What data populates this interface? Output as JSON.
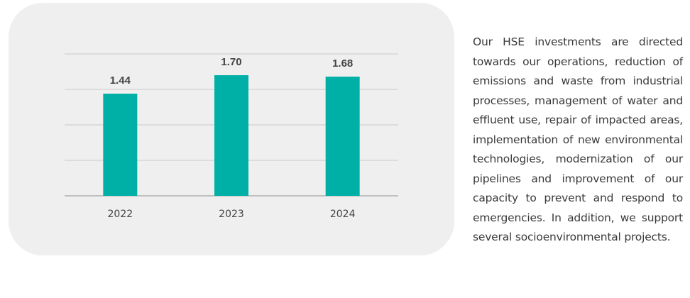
{
  "chart_data": {
    "type": "bar",
    "categories": [
      "2022",
      "2023",
      "2024"
    ],
    "values": [
      1.44,
      1.7,
      1.68
    ],
    "value_labels": [
      "1.44",
      "1.70",
      "1.68"
    ],
    "ylim": [
      0,
      2.0
    ],
    "grid": true,
    "gridline_count": 5,
    "bar_color": "#00b0a6",
    "grid_color": "#c8c8c8",
    "axis_color": "#b0b0b0"
  },
  "side_text": "Our HSE investments are directed towards our operations, reduction of emissions and waste from industrial processes, management of water and effluent use, repair of impacted areas, implementation of new environmental technologies, modernization of our pipelines and improvement of our capacity to prevent and respond to emergencies. In addition, we support several socioenvironmental projects."
}
